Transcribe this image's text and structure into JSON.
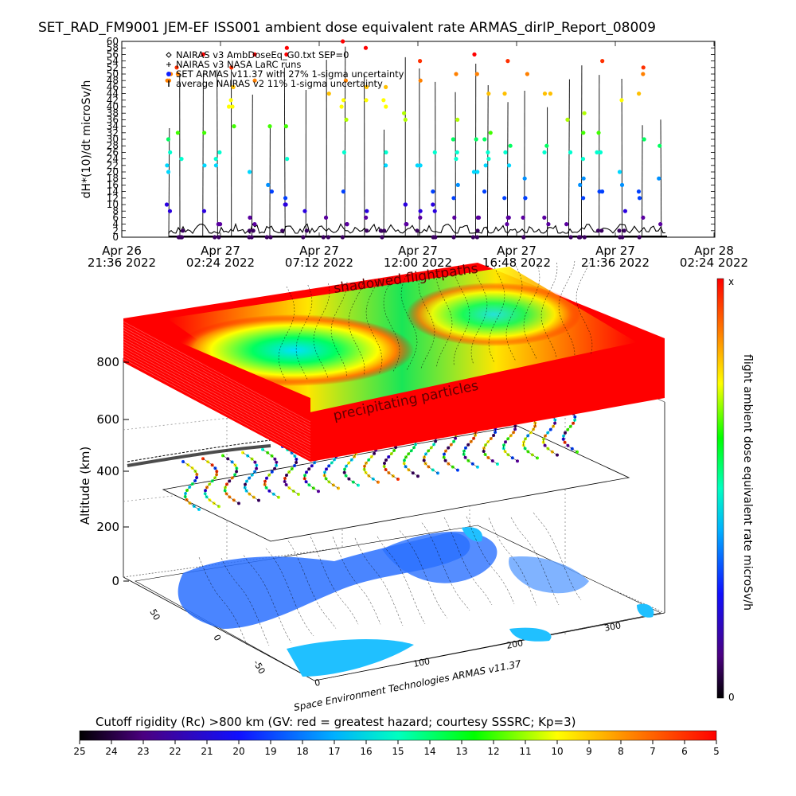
{
  "chart_data": [
    {
      "type": "scatter",
      "title": "SET_RAD_FM9001  JEM-EF ISS001 ambient dose equivalent rate ARMAS_dirIP_Report_08009",
      "ylabel": "dH*(10)/dt microSv/h",
      "ylim": [
        0,
        60
      ],
      "y_ticks": [
        "0",
        "2",
        "4",
        "6",
        "8",
        "10",
        "12",
        "14",
        "16",
        "18",
        "20",
        "22",
        "24",
        "26",
        "28",
        "30",
        "32",
        "34",
        "36",
        "38",
        "40",
        "42",
        "44",
        "46",
        "48",
        "50",
        "52",
        "54",
        "56",
        "58",
        "60"
      ],
      "x_ticks": [
        {
          "date": "Apr 26",
          "time": "21:36 2022"
        },
        {
          "date": "Apr 27",
          "time": "02:24 2022"
        },
        {
          "date": "Apr 27",
          "time": "07:12 2022"
        },
        {
          "date": "Apr 27",
          "time": "12:00 2022"
        },
        {
          "date": "Apr 27",
          "time": "16:48 2022"
        },
        {
          "date": "Apr 27",
          "time": "21:36 2022"
        },
        {
          "date": "Apr 28",
          "time": "02:24 2022"
        }
      ],
      "legend_placement": "top-left",
      "legend": [
        {
          "symbol": "diamond",
          "label": "NAIRAS v3 AmbDoseEq_G0.txt SEP=0"
        },
        {
          "symbol": "plus",
          "label": "NAIRAS v3 NASA LaRC runs"
        },
        {
          "symbol": "dot",
          "label": "SET ARMAS v11.37 with 27% 1-sigma uncertainty"
        },
        {
          "symbol": "bar",
          "label": "average NAIRAS v2 11% 1-sigma uncertainty"
        }
      ],
      "series_levels": [
        0,
        2,
        4,
        6,
        8,
        10,
        12,
        14,
        16,
        18,
        20,
        22,
        24,
        26,
        28,
        30,
        32,
        34,
        36,
        38,
        40,
        42,
        44,
        46,
        48,
        50,
        52,
        54,
        56,
        58,
        60
      ]
    },
    {
      "type": "scatter",
      "ylabel": "Altitude (km)",
      "z_ticks": [
        "0",
        "200",
        "400",
        "600",
        "800"
      ],
      "lat_ticks": [
        "50",
        "0",
        "-50"
      ],
      "lon_ticks": [
        "0",
        "100",
        "200",
        "300"
      ],
      "annotations": [
        "shadowed flightpaths",
        "precipitating particles"
      ],
      "credit": "Space Environment Technologies ARMAS v11.37"
    },
    {
      "type": "colorbar",
      "label": "flight ambient dose equivalent rate microSv/h",
      "top_label": "x",
      "bottom_label": "0"
    },
    {
      "type": "colorbar",
      "label": "Cutoff rigidity (Rc) >800 km (GV: red = greatest hazard; courtesy SSSRC; Kp=3)",
      "ticks": [
        "25",
        "24",
        "23",
        "22",
        "21",
        "20",
        "19",
        "18",
        "17",
        "16",
        "15",
        "14",
        "13",
        "12",
        "11",
        "10",
        "9",
        "8",
        "7",
        "6",
        "5"
      ]
    }
  ],
  "colors": {
    "rainbow": [
      "#000000",
      "#3a0060",
      "#5a00a0",
      "#2a00e0",
      "#0040ff",
      "#0090ff",
      "#00d8ff",
      "#00ffd0",
      "#00ff60",
      "#40ff00",
      "#b0ff00",
      "#ffff00",
      "#ffc000",
      "#ff8000",
      "#ff3000",
      "#ff0000"
    ],
    "ocean": "#2080ff",
    "map_white": "#ffffff"
  }
}
